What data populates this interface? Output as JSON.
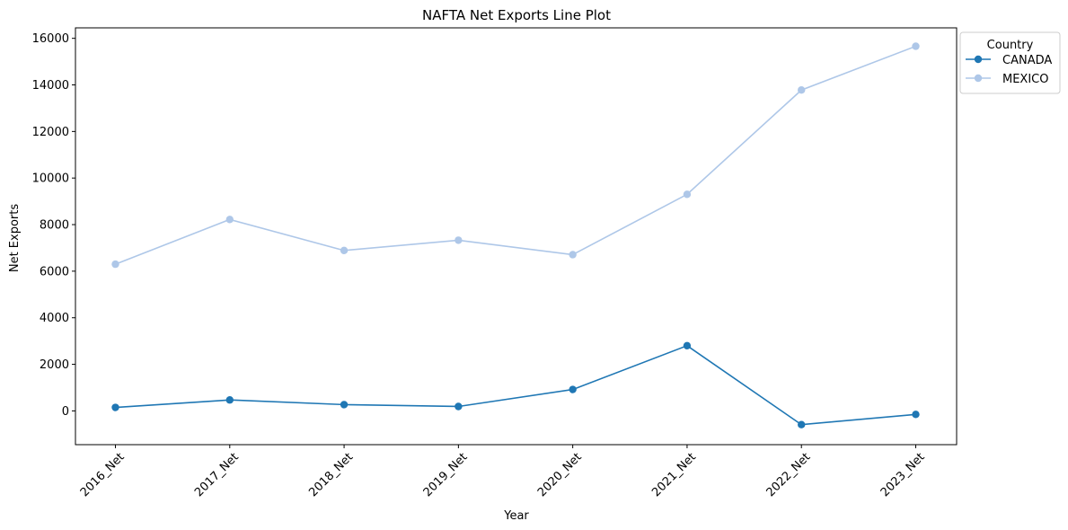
{
  "chart_data": {
    "type": "line",
    "title": "NAFTA Net Exports Line Plot",
    "xlabel": "Year",
    "ylabel": "Net Exports",
    "categories": [
      "2016_Net",
      "2017_Net",
      "2018_Net",
      "2019_Net",
      "2020_Net",
      "2021_Net",
      "2022_Net",
      "2023_Net"
    ],
    "ylim": [
      -1450,
      16450
    ],
    "yticks": [
      0,
      2000,
      4000,
      6000,
      8000,
      10000,
      12000,
      14000,
      16000
    ],
    "grid": false,
    "legend": {
      "title": "Country",
      "placement": "outside-top-right"
    },
    "series": [
      {
        "name": "CANADA",
        "color": "#1f77b4",
        "values": [
          150,
          470,
          270,
          190,
          920,
          2800,
          -590,
          -150
        ]
      },
      {
        "name": "MEXICO",
        "color": "#aec7e8",
        "values": [
          6300,
          8220,
          6890,
          7330,
          6710,
          9300,
          13780,
          15660
        ]
      }
    ]
  }
}
